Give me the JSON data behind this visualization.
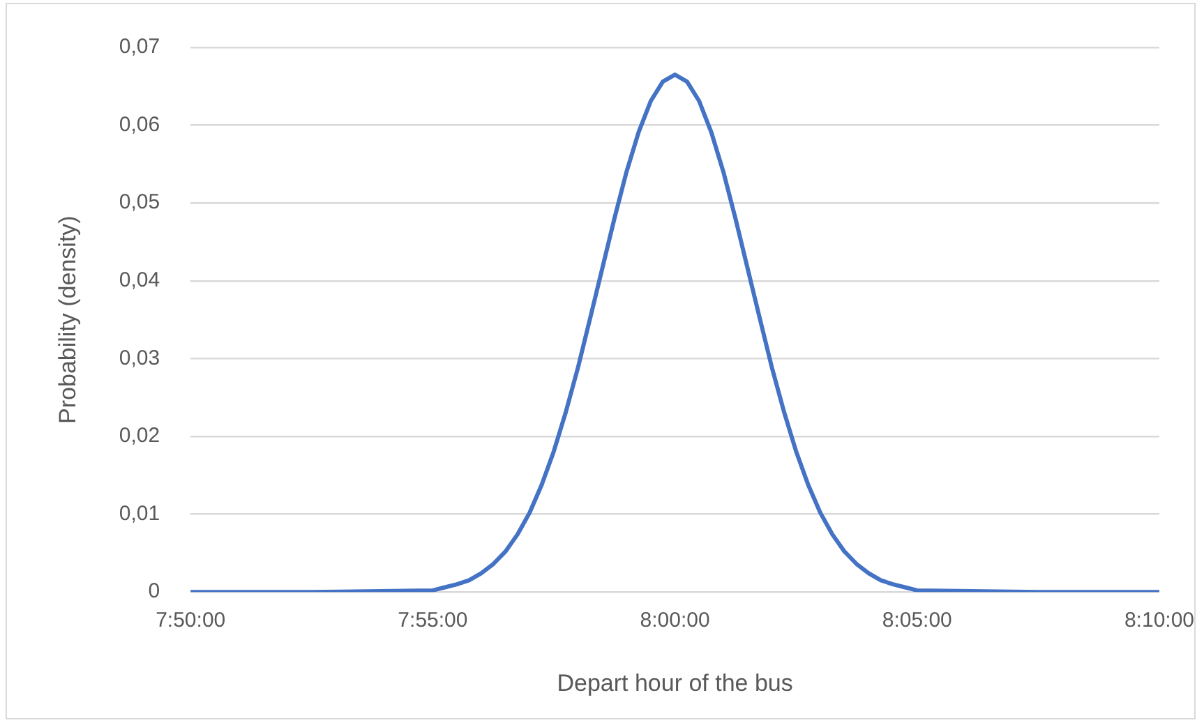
{
  "chart_data": {
    "type": "line",
    "xlabel": "Depart hour of the bus",
    "ylabel": "Probability (density)",
    "x": [
      7.83333,
      7.875,
      7.91667,
      7.92083,
      7.925,
      7.92917,
      7.93333,
      7.9375,
      7.94167,
      7.94583,
      7.95,
      7.95417,
      7.95833,
      7.9625,
      7.96667,
      7.97083,
      7.975,
      7.97917,
      7.98333,
      7.9875,
      7.99167,
      7.99583,
      8,
      8.00417,
      8.00833,
      8.0125,
      8.01667,
      8.02083,
      8.025,
      8.02917,
      8.03333,
      8.0375,
      8.04167,
      8.04583,
      8.05,
      8.05417,
      8.05833,
      8.0625,
      8.06667,
      8.07083,
      8.075,
      8.07917,
      8.08333,
      8.125,
      8.16667
    ],
    "series": [
      {
        "color": "#4472c4",
        "values": [
          0,
          0,
          0.0002,
          0.0006,
          0.001,
          0.0015,
          0.0024,
          0.0036,
          0.0052,
          0.0074,
          0.0102,
          0.0138,
          0.0181,
          0.0232,
          0.0289,
          0.0352,
          0.0416,
          0.048,
          0.054,
          0.0591,
          0.0631,
          0.0656,
          0.0665,
          0.0656,
          0.0631,
          0.0591,
          0.054,
          0.048,
          0.0416,
          0.0352,
          0.0289,
          0.0232,
          0.0181,
          0.0138,
          0.0102,
          0.0074,
          0.0052,
          0.0036,
          0.0024,
          0.0015,
          0.001,
          0.0006,
          0.0002,
          0,
          0
        ]
      }
    ],
    "xlim": [
      7.83333,
      8.16667
    ],
    "xticks": [
      {
        "value": 7.83333,
        "label": "7:50:00"
      },
      {
        "value": 7.91667,
        "label": "7:55:00"
      },
      {
        "value": 8,
        "label": "8:00:00"
      },
      {
        "value": 8.08333,
        "label": "8:05:00"
      },
      {
        "value": 8.16667,
        "label": "8:10:00"
      }
    ],
    "ylim": [
      0,
      0.07
    ],
    "yticks": [
      0,
      {
        "value": 0.01,
        "label": "0,01"
      },
      {
        "value": 0.02,
        "label": "0,02"
      },
      {
        "value": 0.03,
        "label": "0,03"
      },
      {
        "value": 0.04,
        "label": "0,04"
      },
      {
        "value": 0.05,
        "label": "0,05"
      },
      {
        "value": 0.06,
        "label": "0,06"
      },
      {
        "value": 0.07,
        "label": "0,07"
      }
    ],
    "grid": "y",
    "legend": false,
    "marker": "none",
    "line_style": "solid"
  }
}
